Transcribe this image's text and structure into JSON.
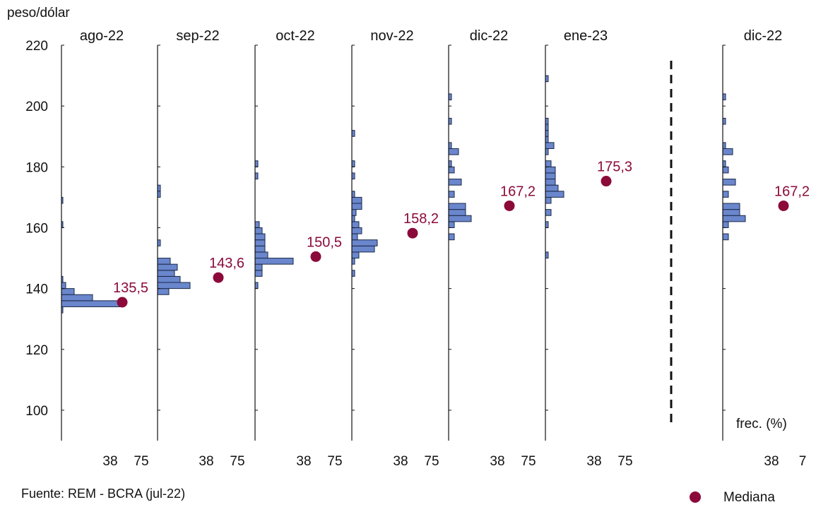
{
  "chart_data": {
    "type": "bar",
    "orientation": "horizontal-histogram-small-multiples",
    "y_unit_label": "peso/dólar",
    "ylim": [
      90,
      220
    ],
    "y_ticks": [
      100,
      120,
      140,
      160,
      180,
      200,
      220
    ],
    "x_tick_labels": [
      "38",
      "75"
    ],
    "last_panel_x_tick_labels": [
      "38",
      "7"
    ],
    "bin_width": 2,
    "frequency_label": "frec. (%)",
    "source": "Fuente: REM - BCRA (jul-22)",
    "legend": {
      "label": "Mediana",
      "color": "#8b0a3a",
      "position": "bottom-right"
    },
    "bar_color": "#6a86cc",
    "bar_edge_color": "#1b2a4a",
    "divider": "dashed",
    "panels": [
      {
        "title": "ago-22",
        "median": 135.5,
        "median_label": "135,5",
        "bins": [
          [
            132,
            1
          ],
          [
            134,
            42
          ],
          [
            136,
            22
          ],
          [
            138,
            9
          ],
          [
            140,
            3
          ],
          [
            142,
            1
          ],
          [
            160,
            1
          ],
          [
            168,
            1
          ]
        ]
      },
      {
        "title": "sep-22",
        "median": 143.6,
        "median_label": "143,6",
        "bins": [
          [
            138,
            8
          ],
          [
            140,
            23
          ],
          [
            142,
            16
          ],
          [
            144,
            12
          ],
          [
            146,
            14
          ],
          [
            148,
            9
          ],
          [
            154,
            2
          ],
          [
            170,
            2
          ],
          [
            172,
            2
          ]
        ]
      },
      {
        "title": "oct-22",
        "median": 150.5,
        "median_label": "150,5",
        "bins": [
          [
            140,
            2
          ],
          [
            144,
            5
          ],
          [
            146,
            5
          ],
          [
            148,
            27
          ],
          [
            150,
            9
          ],
          [
            152,
            7
          ],
          [
            154,
            7
          ],
          [
            156,
            7
          ],
          [
            158,
            5
          ],
          [
            160,
            3
          ],
          [
            176,
            2
          ],
          [
            180,
            2
          ]
        ]
      },
      {
        "title": "nov-22",
        "median": 158.2,
        "median_label": "158,2",
        "bins": [
          [
            144,
            2
          ],
          [
            148,
            2
          ],
          [
            150,
            5
          ],
          [
            152,
            16
          ],
          [
            154,
            18
          ],
          [
            156,
            4
          ],
          [
            158,
            7
          ],
          [
            160,
            5
          ],
          [
            162,
            2
          ],
          [
            164,
            3
          ],
          [
            166,
            7
          ],
          [
            168,
            7
          ],
          [
            170,
            2
          ],
          [
            176,
            2
          ],
          [
            180,
            2
          ],
          [
            190,
            2
          ]
        ]
      },
      {
        "title": "dic-22",
        "median": 167.2,
        "median_label": "167,2",
        "bins": [
          [
            156,
            4
          ],
          [
            160,
            4
          ],
          [
            162,
            16
          ],
          [
            164,
            12
          ],
          [
            166,
            12
          ],
          [
            170,
            4
          ],
          [
            174,
            9
          ],
          [
            178,
            4
          ],
          [
            180,
            2
          ],
          [
            184,
            7
          ],
          [
            186,
            2
          ],
          [
            194,
            2
          ],
          [
            202,
            2
          ]
        ]
      },
      {
        "title": "ene-23",
        "median": 175.3,
        "median_label": "175,3",
        "bins": [
          [
            150,
            2
          ],
          [
            160,
            2
          ],
          [
            164,
            4
          ],
          [
            168,
            4
          ],
          [
            170,
            13
          ],
          [
            172,
            9
          ],
          [
            174,
            7
          ],
          [
            176,
            7
          ],
          [
            178,
            7
          ],
          [
            180,
            4
          ],
          [
            184,
            2
          ],
          [
            186,
            6
          ],
          [
            188,
            2
          ],
          [
            190,
            2
          ],
          [
            192,
            2
          ],
          [
            194,
            2
          ],
          [
            208,
            2
          ]
        ]
      },
      {
        "title": "dic-22",
        "median": 167.2,
        "median_label": "167,2",
        "bins": [
          [
            156,
            4
          ],
          [
            160,
            4
          ],
          [
            162,
            16
          ],
          [
            164,
            12
          ],
          [
            166,
            12
          ],
          [
            170,
            4
          ],
          [
            174,
            9
          ],
          [
            178,
            4
          ],
          [
            180,
            2
          ],
          [
            184,
            7
          ],
          [
            186,
            2
          ],
          [
            194,
            2
          ],
          [
            202,
            2
          ]
        ]
      }
    ]
  }
}
